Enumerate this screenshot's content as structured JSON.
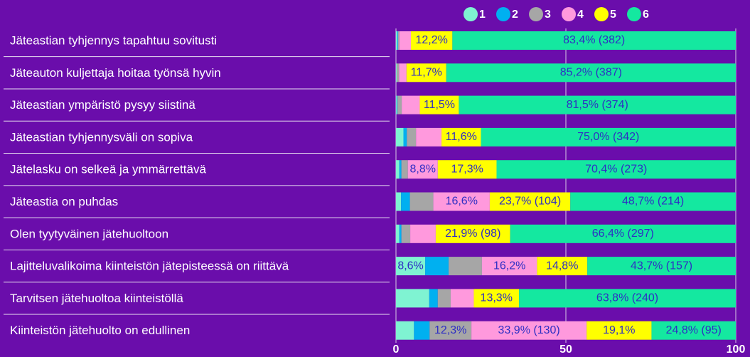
{
  "chart_data": {
    "type": "stacked_barh",
    "categories": [
      "Jäteastian tyhjennys tapahtuu sovitusti",
      "Jäteauton kuljettaja hoitaa työnsä hyvin",
      "Jäteastian ympäristö pysyy siistinä",
      "Jäteastian tyhjennysväli on sopiva",
      "Jätelasku on selkeä ja ymmärrettävä",
      "Jäteastia on puhdas",
      "Olen tyytyväinen jätehuoltoon",
      "Lajitteluvalikoima kiinteistön jätepisteessä on riittävä",
      "Tarvitsen jätehuoltoa kiinteistöllä",
      "Kiinteistön jätehuolto on edullinen"
    ],
    "series": [
      {
        "name": "1",
        "color": "#7ff3d2",
        "values": [
          0.4,
          0.2,
          0.2,
          2.2,
          1.0,
          1.5,
          1.0,
          8.6,
          9.8,
          5.3
        ],
        "value_labels": [
          null,
          null,
          null,
          null,
          null,
          null,
          null,
          "8,6%",
          null,
          null
        ]
      },
      {
        "name": "2",
        "color": "#00b0f0",
        "values": [
          0.2,
          0,
          0.2,
          1.0,
          0.6,
          2.6,
          0.6,
          6.9,
          2.5,
          4.6
        ]
      },
      {
        "name": "3",
        "color": "#a6a6a6",
        "values": [
          0.4,
          0.7,
          1.3,
          2.7,
          1.9,
          6.9,
          2.6,
          9.8,
          3.8,
          12.3
        ],
        "value_labels": [
          null,
          null,
          null,
          null,
          null,
          null,
          null,
          null,
          null,
          "12,3%"
        ]
      },
      {
        "name": "4",
        "color": "#ff99dd",
        "values": [
          3.4,
          2.2,
          5.3,
          7.5,
          8.8,
          16.6,
          7.5,
          16.2,
          6.8,
          33.9
        ],
        "value_labels": [
          null,
          null,
          null,
          null,
          "8,8%",
          "16,6%",
          null,
          "16,2%",
          null,
          "33,9% (130)"
        ]
      },
      {
        "name": "5",
        "color": "#ffff00",
        "values": [
          12.2,
          11.7,
          11.5,
          11.6,
          17.3,
          23.7,
          21.9,
          14.8,
          13.3,
          19.1
        ],
        "value_labels": [
          "12,2%",
          "11,7%",
          "11,5%",
          "11,6%",
          "17,3%",
          "23,7% (104)",
          "21,9% (98)",
          "14,8%",
          "13,3%",
          "19,1%"
        ]
      },
      {
        "name": "6",
        "color": "#14e8a0",
        "values": [
          83.4,
          85.2,
          81.5,
          75.0,
          70.4,
          48.7,
          66.4,
          43.7,
          63.8,
          24.8
        ],
        "value_labels": [
          "83,4% (382)",
          "85,2% (387)",
          "81,5% (374)",
          "75,0% (342)",
          "70,4% (273)",
          "48,7% (214)",
          "66,4% (297)",
          "43,7% (157)",
          "63,8% (240)",
          "24,8% (95)"
        ]
      }
    ],
    "xlim": [
      0,
      100
    ],
    "xticks": [
      0,
      50,
      100
    ],
    "grid": true,
    "legend": "top"
  }
}
